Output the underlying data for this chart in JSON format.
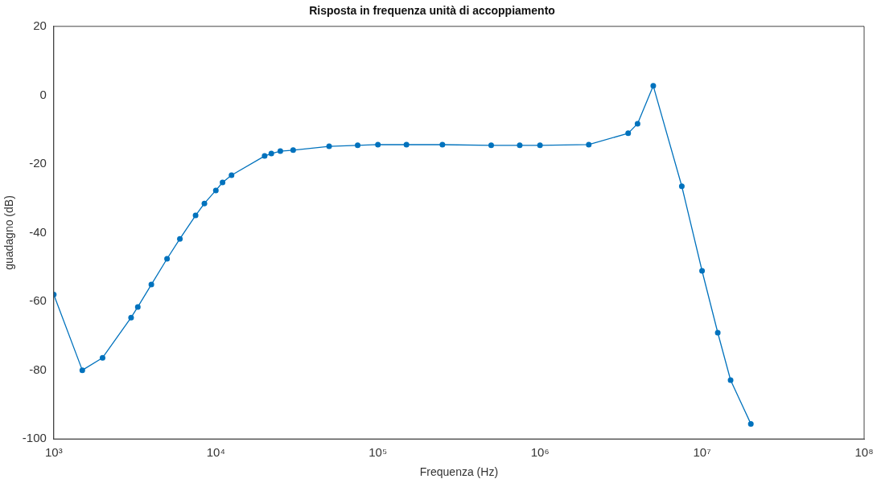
{
  "chart_data": {
    "type": "line",
    "title": "Risposta in frequenza unità di accoppiamento",
    "xlabel": "Frequenza (Hz)",
    "ylabel": "guadagno (dB)",
    "log": "x",
    "grid": false,
    "legend": false,
    "marker": "circle",
    "line_style": "solid",
    "xlim": [
      1000,
      100000000
    ],
    "xticks": [
      {
        "value": 1000,
        "label": "10³"
      },
      {
        "value": 10000,
        "label": "10⁴"
      },
      {
        "value": 100000,
        "label": "10⁵"
      },
      {
        "value": 1000000,
        "label": "10⁶"
      },
      {
        "value": 10000000,
        "label": "10⁷"
      },
      {
        "value": 100000000,
        "label": "10⁸"
      }
    ],
    "ylim": [
      -100,
      20
    ],
    "yticks": [
      -100,
      -80,
      -60,
      -40,
      -20,
      0,
      20
    ],
    "series": [
      {
        "color": "#0072bd",
        "x": [
          1000,
          1500,
          2000,
          3000,
          3300,
          4000,
          5000,
          6000,
          7500,
          8500,
          10000,
          11000,
          12500,
          20000,
          22000,
          25000,
          30000,
          50000,
          75000,
          100000,
          150000,
          250000,
          500000,
          750000,
          1000000,
          2000000,
          3500000,
          4000000,
          5000000,
          7500000,
          10000000,
          12500000,
          15000000,
          20000000
        ],
        "values": [
          -58,
          -80,
          -76.4,
          -64.7,
          -61.6,
          -55.1,
          -47.6,
          -41.8,
          -35,
          -31.5,
          -27.7,
          -25.4,
          -23.3,
          -17.7,
          -17,
          -16.3,
          -16,
          -14.9,
          -14.6,
          -14.4,
          -14.4,
          -14.4,
          -14.6,
          -14.6,
          -14.6,
          -14.4,
          -11.1,
          -8.3,
          2.7,
          -26.5,
          -51.1,
          -69.1,
          -82.9,
          -95.6
        ]
      }
    ]
  }
}
